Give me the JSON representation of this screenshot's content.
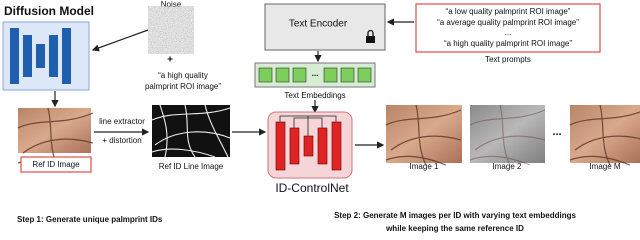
{
  "diffusion": {
    "title": "Diffusion Model",
    "noise_label": "Noise",
    "plus": "+",
    "prompt": [
      "“a high quality",
      "palmprint ROI image”"
    ]
  },
  "text_encoder": {
    "label": "Text Encoder"
  },
  "prompts": {
    "lines": [
      "“a low quality palmprint ROI image”",
      "“a average quality palmprint ROI image”",
      "...",
      "“a high quality palmprint ROI image”"
    ],
    "caption": "Text prompts"
  },
  "embeddings": {
    "ellipsis": "...",
    "caption": "Text Embeddings"
  },
  "step1": {
    "ref_image": "Ref ID Image",
    "extractor": [
      "line extractor",
      "+ distortion"
    ],
    "line_image": "Ref ID Line Image",
    "caption": "Step 1: Generate unique palmprint IDs"
  },
  "controlnet": {
    "label": "ID-ControlNet"
  },
  "outputs": {
    "images": [
      "Image 1",
      "Image 2",
      "Image M"
    ],
    "ellipsis": "...",
    "caption": [
      "Step 2: Generate M images per ID with varying text embeddings",
      "while keeping the same reference ID"
    ]
  }
}
